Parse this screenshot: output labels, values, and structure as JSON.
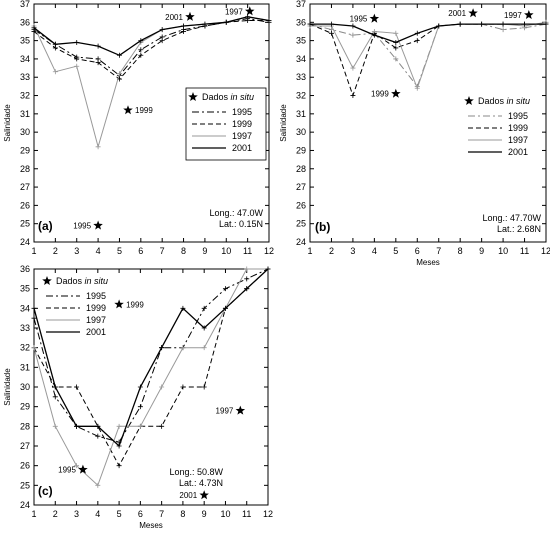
{
  "chart_data": [
    {
      "type": "line",
      "panel_label": "(a)",
      "xlabel": "",
      "ylabel": "Salinidade",
      "x": [
        1,
        2,
        3,
        4,
        5,
        6,
        7,
        8,
        9,
        10,
        11,
        12
      ],
      "xlim": [
        1,
        12
      ],
      "ylim": [
        24,
        37
      ],
      "yticks": [
        24,
        25,
        26,
        27,
        28,
        29,
        30,
        31,
        32,
        33,
        34,
        35,
        36,
        37
      ],
      "grid": false,
      "legend": {
        "title_prefix": "Dados ",
        "title_italic": "in situ",
        "entries": [
          "1995",
          "1999",
          "1997",
          "2001"
        ]
      },
      "series": [
        {
          "name": "1995",
          "style": "dashdot",
          "color": "#000000",
          "values": [
            35.6,
            34.8,
            34.1,
            34.0,
            33.1,
            34.5,
            35.2,
            35.6,
            35.8,
            36.0,
            36.2,
            36.0
          ]
        },
        {
          "name": "1999",
          "style": "dashed",
          "color": "#000000",
          "values": [
            35.5,
            34.6,
            34.0,
            33.8,
            32.9,
            34.2,
            35.0,
            35.5,
            35.8,
            36.0,
            36.1,
            36.1
          ]
        },
        {
          "name": "1997",
          "style": "solid",
          "color": "#999999",
          "values": [
            35.8,
            33.3,
            33.6,
            29.2,
            33.2,
            34.9,
            35.6,
            35.8,
            35.9,
            36.0,
            36.3,
            36.1
          ]
        },
        {
          "name": "2001",
          "style": "solid",
          "color": "#000000",
          "values": [
            35.7,
            34.8,
            34.9,
            34.7,
            34.2,
            35.0,
            35.6,
            35.8,
            35.9,
            36.0,
            36.3,
            36.1
          ]
        }
      ],
      "in_situ": [
        {
          "label": "1995",
          "x": 4.0,
          "y": 24.9
        },
        {
          "label": "1999",
          "x": 5.4,
          "y": 31.2
        },
        {
          "label": "2001",
          "x": 8.3,
          "y": 36.3
        },
        {
          "label": "1997",
          "x": 11.1,
          "y": 36.6
        }
      ],
      "annotations": [
        "Long.: 47.0W",
        "Lat.: 0.15N"
      ]
    },
    {
      "type": "line",
      "panel_label": "(b)",
      "xlabel": "Meses",
      "ylabel": "Salinidade",
      "x": [
        1,
        2,
        3,
        4,
        5,
        6,
        7,
        8,
        9,
        10,
        11,
        12
      ],
      "xlim": [
        1,
        12
      ],
      "ylim": [
        24,
        37
      ],
      "yticks": [
        24,
        25,
        26,
        27,
        28,
        29,
        30,
        31,
        32,
        33,
        34,
        35,
        36,
        37
      ],
      "grid": false,
      "legend": {
        "title_prefix": "Dados ",
        "title_italic": "in situ",
        "entries": [
          "1995",
          "1999",
          "1997",
          "2001"
        ]
      },
      "series": [
        {
          "name": "1995",
          "style": "dashdot",
          "color": "#888888",
          "values": [
            35.9,
            35.6,
            35.3,
            35.4,
            34.0,
            32.5,
            35.8,
            35.9,
            35.9,
            35.6,
            35.7,
            35.9
          ]
        },
        {
          "name": "1999",
          "style": "dashed",
          "color": "#000000",
          "values": [
            35.9,
            35.4,
            32.0,
            35.4,
            34.6,
            35.0,
            35.8,
            35.9,
            35.9,
            35.9,
            35.9,
            35.9
          ]
        },
        {
          "name": "1997",
          "style": "solid",
          "color": "#999999",
          "values": [
            35.8,
            35.8,
            33.5,
            35.5,
            35.4,
            32.4,
            35.8,
            35.9,
            35.9,
            35.9,
            35.8,
            36.0
          ]
        },
        {
          "name": "2001",
          "style": "solid",
          "color": "#000000",
          "values": [
            35.9,
            35.9,
            35.8,
            35.3,
            34.9,
            35.4,
            35.8,
            35.9,
            35.9,
            35.9,
            35.9,
            35.9
          ]
        }
      ],
      "in_situ": [
        {
          "label": "1995",
          "x": 4.0,
          "y": 36.2
        },
        {
          "label": "1999",
          "x": 5.0,
          "y": 32.1
        },
        {
          "label": "2001",
          "x": 8.6,
          "y": 36.5
        },
        {
          "label": "1997",
          "x": 11.2,
          "y": 36.4
        }
      ],
      "annotations": [
        "Long.: 47.70W",
        "Lat.: 2.68N"
      ]
    },
    {
      "type": "line",
      "panel_label": "(c)",
      "xlabel": "Meses",
      "ylabel": "Salinidade",
      "x": [
        1,
        2,
        3,
        4,
        5,
        6,
        7,
        8,
        9,
        10,
        11,
        12
      ],
      "xlim": [
        1,
        12
      ],
      "ylim": [
        24,
        36
      ],
      "yticks": [
        24,
        25,
        26,
        27,
        28,
        29,
        30,
        31,
        32,
        33,
        34,
        35,
        36
      ],
      "grid": false,
      "legend": {
        "title_prefix": "Dados ",
        "title_italic": "in situ",
        "entries": [
          "1995",
          "1999",
          "1997",
          "2001"
        ]
      },
      "series": [
        {
          "name": "1995",
          "style": "dashdot",
          "color": "#000000",
          "values": [
            33.5,
            29.5,
            28.0,
            27.5,
            27.2,
            29.0,
            32.0,
            32.0,
            34.0,
            35.0,
            35.5,
            36.0
          ]
        },
        {
          "name": "1999",
          "style": "dashed",
          "color": "#000000",
          "values": [
            32.0,
            30.0,
            30.0,
            28.0,
            26.0,
            28.0,
            28.0,
            30.0,
            30.0,
            34.0,
            35.0,
            36.0
          ]
        },
        {
          "name": "1997",
          "style": "solid",
          "color": "#999999",
          "values": [
            32.0,
            28.0,
            26.0,
            25.0,
            28.0,
            28.0,
            30.0,
            32.0,
            32.0,
            34.0,
            36.0,
            36.0
          ]
        },
        {
          "name": "2001",
          "style": "solid",
          "color": "#000000",
          "values": [
            34.0,
            30.0,
            28.0,
            28.0,
            27.0,
            30.0,
            32.0,
            34.0,
            33.0,
            34.0,
            35.0,
            36.0
          ]
        }
      ],
      "in_situ": [
        {
          "label": "1995",
          "x": 3.3,
          "y": 25.8
        },
        {
          "label": "1999",
          "x": 5.0,
          "y": 34.2
        },
        {
          "label": "1997",
          "x": 10.7,
          "y": 28.8
        },
        {
          "label": "2001",
          "x": 9.0,
          "y": 24.5
        }
      ],
      "annotations": [
        "Long.: 50.8W",
        "Lat.: 4.73N"
      ]
    }
  ]
}
